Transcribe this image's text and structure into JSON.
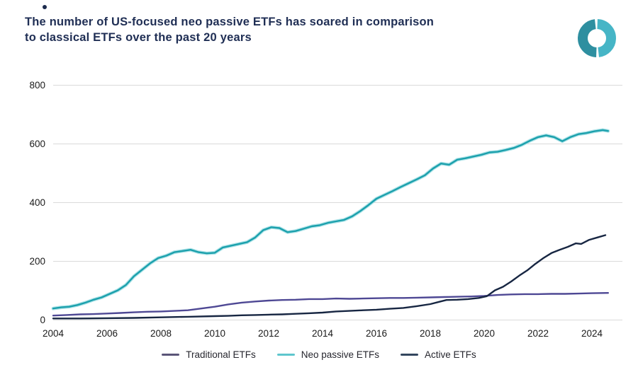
{
  "header": {
    "title_line1": "The number of US-focused neo passive ETFs has soared in comparison",
    "title_line2": "to classical ETFs over the past 20 years",
    "title_color": "#1f2e54"
  },
  "logo": {
    "name": "split-donut-logo",
    "left_color": "#2e8fa0",
    "right_color": "#46b5c6"
  },
  "chart_data": {
    "type": "line",
    "title": "The number of US-focused neo passive ETFs has soared in comparison to classical ETFs over the past 20 years",
    "xlabel": "",
    "ylabel": "",
    "xlim": [
      2004,
      2024.7
    ],
    "ylim": [
      0,
      800
    ],
    "x_ticks": [
      2004,
      2006,
      2008,
      2010,
      2012,
      2014,
      2016,
      2018,
      2020,
      2022,
      2024
    ],
    "y_ticks": [
      0,
      200,
      400,
      600,
      800
    ],
    "grid": "horizontal",
    "grid_color": "#dadada",
    "tick_color": "#1a1a1a",
    "legend_position": "bottom",
    "series": [
      {
        "name": "Traditional ETFs",
        "color": "#4e4894",
        "legend_color": "#5a5578",
        "points": [
          [
            2004.0,
            14
          ],
          [
            2004.5,
            16
          ],
          [
            2005.0,
            18
          ],
          [
            2005.5,
            19
          ],
          [
            2006.0,
            21
          ],
          [
            2006.5,
            23
          ],
          [
            2007.0,
            25
          ],
          [
            2007.5,
            27
          ],
          [
            2008.0,
            28
          ],
          [
            2008.5,
            30
          ],
          [
            2009.0,
            32
          ],
          [
            2009.5,
            38
          ],
          [
            2010.0,
            44
          ],
          [
            2010.5,
            52
          ],
          [
            2011.0,
            58
          ],
          [
            2011.5,
            62
          ],
          [
            2012.0,
            65
          ],
          [
            2012.5,
            67
          ],
          [
            2013.0,
            68
          ],
          [
            2013.5,
            70
          ],
          [
            2014.0,
            70
          ],
          [
            2014.5,
            72
          ],
          [
            2015.0,
            71
          ],
          [
            2015.5,
            72
          ],
          [
            2016.0,
            73
          ],
          [
            2016.5,
            74
          ],
          [
            2017.0,
            74
          ],
          [
            2017.5,
            75
          ],
          [
            2018.0,
            76
          ],
          [
            2018.5,
            77
          ],
          [
            2019.0,
            78
          ],
          [
            2019.5,
            79
          ],
          [
            2020.0,
            81
          ],
          [
            2020.5,
            84
          ],
          [
            2021.0,
            86
          ],
          [
            2021.5,
            87
          ],
          [
            2022.0,
            87
          ],
          [
            2022.5,
            88
          ],
          [
            2023.0,
            88
          ],
          [
            2023.5,
            89
          ],
          [
            2024.0,
            90
          ],
          [
            2024.6,
            91
          ]
        ]
      },
      {
        "name": "Neo passive ETFs",
        "color": "#1ba0ac",
        "halo_color": "#aee3e8",
        "legend_color": "#5ec6cd",
        "points": [
          [
            2004.0,
            38
          ],
          [
            2004.3,
            42
          ],
          [
            2004.6,
            44
          ],
          [
            2004.9,
            50
          ],
          [
            2005.2,
            58
          ],
          [
            2005.5,
            68
          ],
          [
            2005.8,
            76
          ],
          [
            2006.1,
            88
          ],
          [
            2006.4,
            100
          ],
          [
            2006.7,
            118
          ],
          [
            2007.0,
            148
          ],
          [
            2007.3,
            170
          ],
          [
            2007.6,
            192
          ],
          [
            2007.9,
            210
          ],
          [
            2008.2,
            218
          ],
          [
            2008.5,
            230
          ],
          [
            2008.8,
            234
          ],
          [
            2009.1,
            238
          ],
          [
            2009.4,
            230
          ],
          [
            2009.7,
            226
          ],
          [
            2010.0,
            228
          ],
          [
            2010.3,
            246
          ],
          [
            2010.6,
            252
          ],
          [
            2010.9,
            258
          ],
          [
            2011.2,
            264
          ],
          [
            2011.5,
            280
          ],
          [
            2011.8,
            305
          ],
          [
            2012.1,
            315
          ],
          [
            2012.4,
            312
          ],
          [
            2012.7,
            298
          ],
          [
            2013.0,
            302
          ],
          [
            2013.3,
            310
          ],
          [
            2013.6,
            318
          ],
          [
            2013.9,
            322
          ],
          [
            2014.2,
            330
          ],
          [
            2014.5,
            335
          ],
          [
            2014.8,
            340
          ],
          [
            2015.1,
            352
          ],
          [
            2015.4,
            370
          ],
          [
            2015.7,
            390
          ],
          [
            2016.0,
            412
          ],
          [
            2016.3,
            425
          ],
          [
            2016.6,
            438
          ],
          [
            2016.9,
            452
          ],
          [
            2017.2,
            465
          ],
          [
            2017.5,
            478
          ],
          [
            2017.8,
            492
          ],
          [
            2018.1,
            515
          ],
          [
            2018.4,
            532
          ],
          [
            2018.7,
            528
          ],
          [
            2019.0,
            545
          ],
          [
            2019.3,
            550
          ],
          [
            2019.6,
            556
          ],
          [
            2019.9,
            562
          ],
          [
            2020.2,
            570
          ],
          [
            2020.5,
            572
          ],
          [
            2020.8,
            578
          ],
          [
            2021.1,
            585
          ],
          [
            2021.4,
            596
          ],
          [
            2021.7,
            610
          ],
          [
            2022.0,
            622
          ],
          [
            2022.3,
            628
          ],
          [
            2022.6,
            622
          ],
          [
            2022.9,
            608
          ],
          [
            2023.2,
            622
          ],
          [
            2023.5,
            632
          ],
          [
            2023.8,
            636
          ],
          [
            2024.1,
            642
          ],
          [
            2024.4,
            646
          ],
          [
            2024.6,
            643
          ]
        ]
      },
      {
        "name": "Active ETFs",
        "color": "#172642",
        "legend_color": "#33465e",
        "points": [
          [
            2004.0,
            4
          ],
          [
            2005.0,
            4
          ],
          [
            2006.0,
            5
          ],
          [
            2007.0,
            6
          ],
          [
            2008.0,
            8
          ],
          [
            2009.0,
            10
          ],
          [
            2010.0,
            12
          ],
          [
            2010.5,
            13
          ],
          [
            2011.0,
            15
          ],
          [
            2011.5,
            16
          ],
          [
            2012.0,
            17
          ],
          [
            2012.5,
            18
          ],
          [
            2013.0,
            20
          ],
          [
            2013.5,
            22
          ],
          [
            2014.0,
            24
          ],
          [
            2014.5,
            28
          ],
          [
            2015.0,
            30
          ],
          [
            2015.5,
            32
          ],
          [
            2016.0,
            34
          ],
          [
            2016.5,
            37
          ],
          [
            2017.0,
            40
          ],
          [
            2017.5,
            46
          ],
          [
            2018.0,
            53
          ],
          [
            2018.3,
            60
          ],
          [
            2018.6,
            67
          ],
          [
            2019.0,
            68
          ],
          [
            2019.4,
            70
          ],
          [
            2019.8,
            74
          ],
          [
            2020.1,
            80
          ],
          [
            2020.4,
            100
          ],
          [
            2020.7,
            112
          ],
          [
            2021.0,
            130
          ],
          [
            2021.3,
            150
          ],
          [
            2021.6,
            168
          ],
          [
            2021.9,
            190
          ],
          [
            2022.2,
            210
          ],
          [
            2022.5,
            227
          ],
          [
            2022.8,
            238
          ],
          [
            2023.1,
            248
          ],
          [
            2023.4,
            260
          ],
          [
            2023.6,
            258
          ],
          [
            2023.9,
            272
          ],
          [
            2024.2,
            280
          ],
          [
            2024.5,
            288
          ]
        ]
      }
    ]
  }
}
